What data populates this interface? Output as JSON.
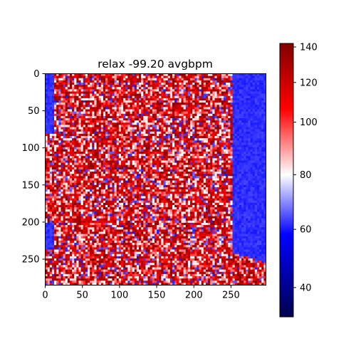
{
  "chart_data": {
    "type": "heatmap",
    "title": "relax -99.20 avgbpm",
    "image_shape": {
      "rows": 285,
      "cols": 297
    },
    "x_ticks": [
      0,
      50,
      100,
      150,
      200,
      250
    ],
    "y_ticks": [
      0,
      50,
      100,
      150,
      200,
      250
    ],
    "xlim": [
      0,
      297
    ],
    "ylim": [
      285,
      0
    ],
    "y_inverted": true,
    "colormap": "seismic",
    "colorbar": {
      "range": [
        30,
        142
      ],
      "ticks": [
        40,
        60,
        80,
        100,
        120,
        140
      ],
      "scale": "nonlinear (centered near 80)",
      "colors": [
        "#00004c",
        "#0000ff",
        "#ffffff",
        "#ff0000",
        "#800000"
      ]
    },
    "description_regions": {
      "right_region_cols": [
        250,
        297
      ],
      "right_region_approx_value": 62,
      "main_texture_value_range": [
        70,
        142
      ]
    }
  }
}
